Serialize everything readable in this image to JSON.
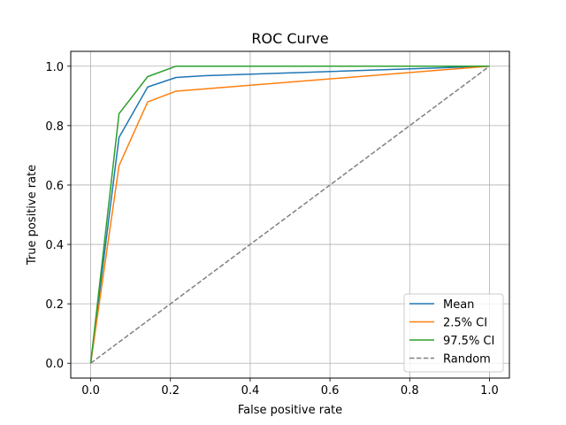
{
  "chart_data": {
    "type": "line",
    "title": "ROC Curve",
    "xlabel": "False positive rate",
    "ylabel": "True positive rate",
    "xlim": [
      -0.05,
      1.05
    ],
    "ylim": [
      -0.05,
      1.05
    ],
    "xticks": [
      0.0,
      0.2,
      0.4,
      0.6,
      0.8,
      1.0
    ],
    "yticks": [
      0.0,
      0.2,
      0.4,
      0.6,
      0.8,
      1.0
    ],
    "xtick_labels": [
      "0.0",
      "0.2",
      "0.4",
      "0.6",
      "0.8",
      "1.0"
    ],
    "ytick_labels": [
      "0.0",
      "0.2",
      "0.4",
      "0.6",
      "0.8",
      "1.0"
    ],
    "grid": true,
    "legend_position": "bottom-right",
    "series": [
      {
        "name": "Mean",
        "color": "#1f77b4",
        "dash": "solid",
        "x": [
          0.0,
          0.071,
          0.143,
          0.214,
          0.286,
          1.0
        ],
        "y": [
          0.0,
          0.76,
          0.93,
          0.962,
          0.968,
          1.0
        ]
      },
      {
        "name": "2.5% CI",
        "color": "#ff7f0e",
        "dash": "solid",
        "x": [
          0.0,
          0.071,
          0.143,
          0.214,
          1.0
        ],
        "y": [
          0.0,
          0.665,
          0.88,
          0.916,
          1.0
        ]
      },
      {
        "name": "97.5% CI",
        "color": "#2ca02c",
        "dash": "solid",
        "x": [
          0.0,
          0.071,
          0.143,
          0.214,
          1.0
        ],
        "y": [
          0.0,
          0.84,
          0.965,
          1.0,
          1.0
        ]
      },
      {
        "name": "Random",
        "color": "#808080",
        "dash": "dashed",
        "x": [
          0.0,
          1.0
        ],
        "y": [
          0.0,
          1.0
        ]
      }
    ]
  }
}
